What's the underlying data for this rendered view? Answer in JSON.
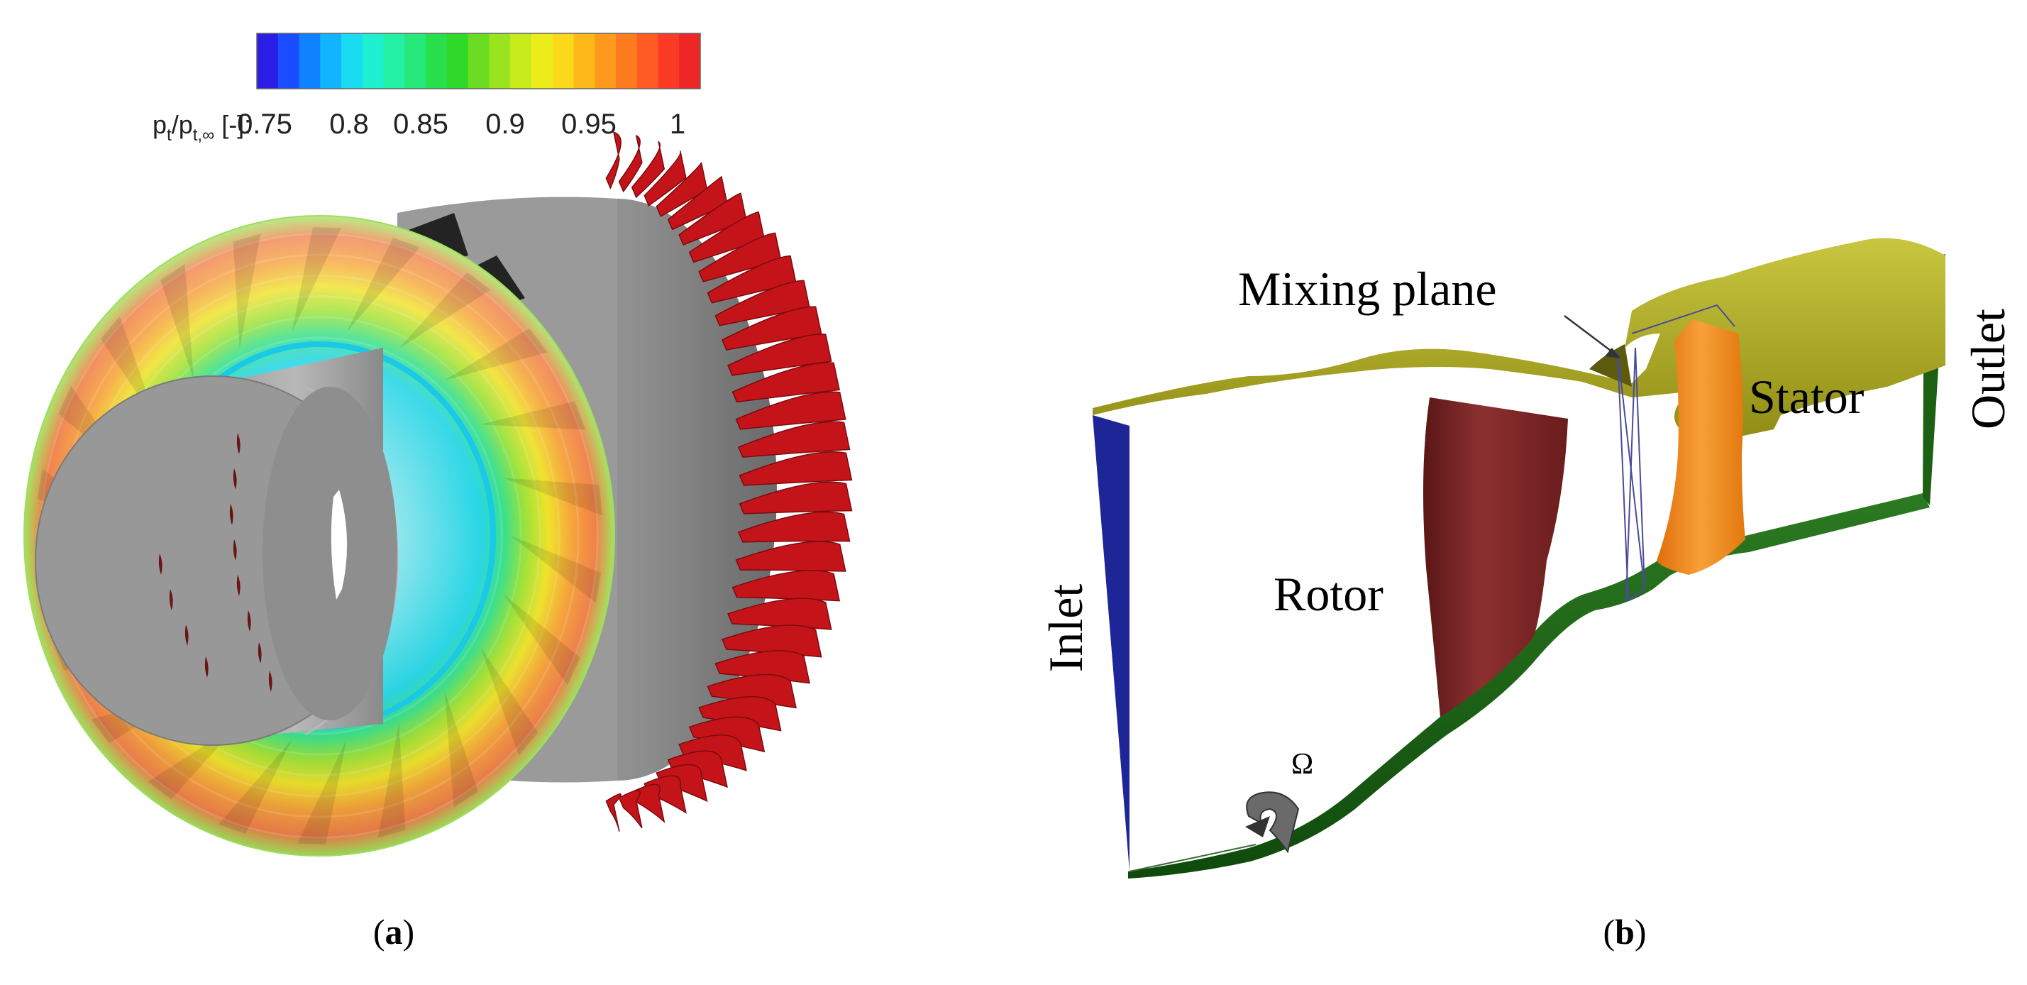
{
  "panel_a": {
    "caption_letter": "a",
    "colorbar": {
      "label_main": "p",
      "label_sub1": "t",
      "label_slash": "/p",
      "label_sub2": "t,∞",
      "label_unit": " [-]:",
      "colors": [
        "#2a1ee6",
        "#1a4dff",
        "#0f83ff",
        "#12b4ff",
        "#19dbf2",
        "#1ff0d2",
        "#23f0a5",
        "#27e87a",
        "#29df4c",
        "#2fd92a",
        "#69dc23",
        "#9ae31f",
        "#c8eb1c",
        "#ecec1a",
        "#fbd81a",
        "#ffb81a",
        "#ff9a1c",
        "#ff7b1f",
        "#ff5b23",
        "#fb3a26",
        "#ee2626"
      ],
      "ticks": [
        "0.75",
        "0.8",
        "0.85",
        "0.9",
        "0.95",
        "1"
      ]
    }
  },
  "panel_b": {
    "caption_letter": "b",
    "labels": {
      "mixing_plane": "Mixing plane",
      "stator": "Stator",
      "outlet": "Outlet",
      "inlet": "Inlet",
      "rotor": "Rotor",
      "omega": "Ω"
    }
  },
  "colors": {
    "hub_gray": "#8f8f8f",
    "blade_red": "#c4141a",
    "rotor_maroon": "#7a2424",
    "stator_orange": "#f08a14",
    "inlet_blue": "#1e2596",
    "outlet_green": "#1c6014",
    "shroud_olive": "#a4a21c"
  }
}
